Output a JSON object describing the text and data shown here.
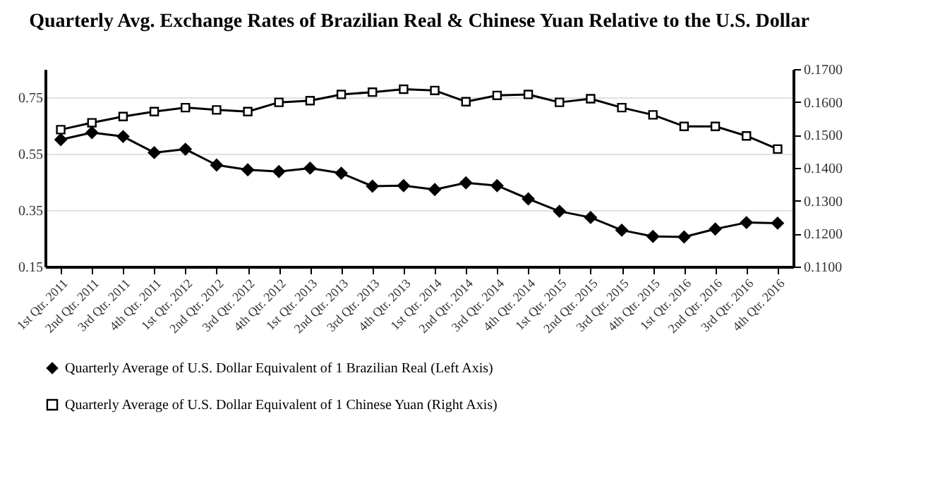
{
  "chart_data": {
    "type": "line",
    "title": "Quarterly Avg. Exchange Rates of Brazilian Real & Chinese Yuan Relative to the U.S. Dollar",
    "categories": [
      "1st Qtr. 2011",
      "2nd Qtr. 2011",
      "3rd Qtr. 2011",
      "4th Qtr. 2011",
      "1st Qtr. 2012",
      "2nd Qtr. 2012",
      "3rd Qtr. 2012",
      "4th Qtr. 2012",
      "1st Qtr. 2013",
      "2nd Qtr. 2013",
      "3rd Qtr. 2013",
      "4th Qtr. 2013",
      "1st Qtr. 2014",
      "2nd Qtr. 2014",
      "3rd Qtr. 2014",
      "4th Qtr. 2014",
      "1st Qtr. 2015",
      "2nd Qtr. 2015",
      "3rd Qtr. 2015",
      "4th Qtr. 2015",
      "1st Qtr. 2016",
      "2nd Qtr. 2016",
      "3rd Qtr. 2016",
      "4th Qtr. 2016"
    ],
    "series": [
      {
        "name": "Quarterly Average of U.S. Dollar Equivalent of 1 Brazilian Real (Left Axis)",
        "color": "#000000",
        "marker": "diamond",
        "values": [
          0.6,
          0.625,
          0.611,
          0.554,
          0.566,
          0.51,
          0.493,
          0.487,
          0.499,
          0.481,
          0.435,
          0.437,
          0.423,
          0.447,
          0.437,
          0.39,
          0.346,
          0.324,
          0.279,
          0.257,
          0.255,
          0.283,
          0.306,
          0.304
        ]
      },
      {
        "name": "Quarterly Average of U.S. Dollar Equivalent of 1 Chinese Yuan (Right Axis)",
        "color": "#000000",
        "marker": "square",
        "axis": "y2",
        "values": [
          0.1516,
          0.1537,
          0.1556,
          0.1571,
          0.1583,
          0.1576,
          0.1571,
          0.1599,
          0.1604,
          0.1623,
          0.163,
          0.1639,
          0.1635,
          0.1601,
          0.162,
          0.1623,
          0.1599,
          0.161,
          0.1583,
          0.1561,
          0.1526,
          0.1526,
          0.1497,
          0.1457
        ]
      }
    ],
    "ylim": [
      0.15,
      0.85
    ],
    "yticks": [
      {
        "value": 0.15,
        "label": "0.15"
      },
      {
        "value": 0.35,
        "label": "0.35"
      },
      {
        "value": 0.55,
        "label": "0.55"
      },
      {
        "value": 0.75,
        "label": "0.75"
      }
    ],
    "y2lim": [
      0.11,
      0.17
    ],
    "y2ticks": [
      {
        "value": 0.11,
        "label": "0.1100"
      },
      {
        "value": 0.12,
        "label": "0.1200"
      },
      {
        "value": 0.13,
        "label": "0.1300"
      },
      {
        "value": 0.14,
        "label": "0.1400"
      },
      {
        "value": 0.15,
        "label": "0.1500"
      },
      {
        "value": 0.16,
        "label": "0.1600"
      },
      {
        "value": 0.17,
        "label": "0.1700"
      }
    ],
    "grid": "y",
    "legend": "bottom",
    "line_style": "solid"
  }
}
